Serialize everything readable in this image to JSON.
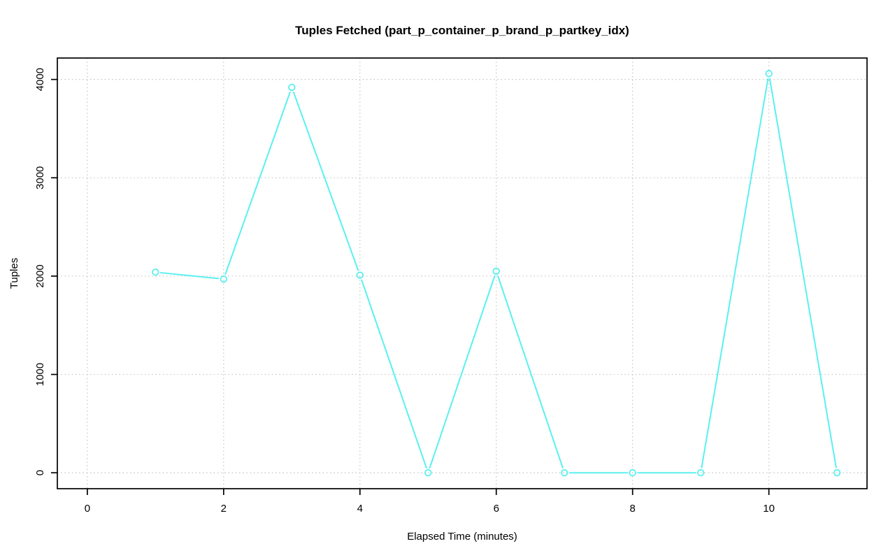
{
  "chart_data": {
    "type": "line",
    "title": "Tuples Fetched (part_p_container_p_brand_p_partkey_idx)",
    "xlabel": "Elapsed Time (minutes)",
    "ylabel": "Tuples",
    "x": [
      1,
      2,
      3,
      4,
      5,
      6,
      7,
      8,
      9,
      10,
      11
    ],
    "y": [
      2040,
      1970,
      3920,
      2010,
      0,
      2050,
      0,
      0,
      0,
      4060,
      0
    ],
    "series_name": "Tuples Fetched",
    "xticks": [
      0,
      2,
      4,
      6,
      8,
      10
    ],
    "yticks": [
      0,
      1000,
      2000,
      3000,
      4000
    ],
    "xlim": [
      -0.44,
      11.44
    ],
    "ylim": [
      -162,
      4218
    ],
    "grid": true,
    "grid_style": "dotted",
    "legend_position": "none",
    "line_color": "#5BF0F0",
    "marker": "open-circle",
    "grid_color": "#C6C6C6",
    "axis_color": "#000000",
    "background_color": "#FFFFFF"
  }
}
